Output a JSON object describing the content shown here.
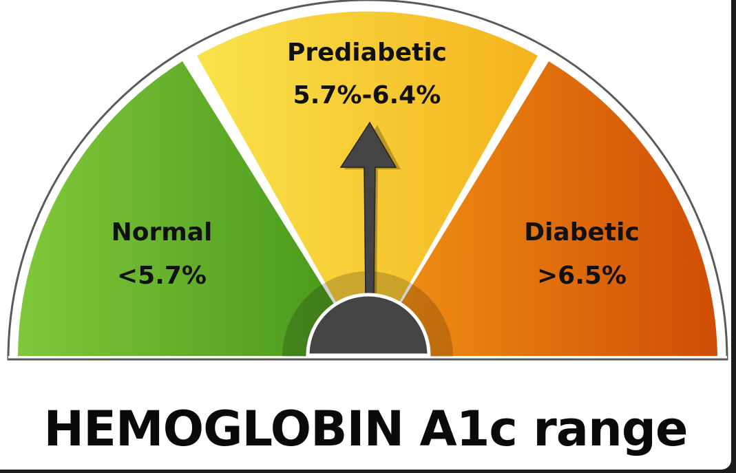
{
  "title": "HEMOGLOBIN A1c range",
  "pointer_zone": "Prediabetic",
  "zones": [
    {
      "name": "Normal",
      "range": "<5.7%",
      "color_start": "#80c83a",
      "color_end": "#45951a"
    },
    {
      "name": "Prediabetic",
      "range": "5.7%-6.4%",
      "color_start": "#f9e34c",
      "color_end": "#f4b31d"
    },
    {
      "name": "Diabetic",
      "range": ">6.5%",
      "color_start": "#f29414",
      "color_end": "#d04d05"
    }
  ],
  "colors": {
    "needle": "#444444",
    "hub": "#444444",
    "outline": "#555555",
    "separator": "#fbfbf0"
  }
}
